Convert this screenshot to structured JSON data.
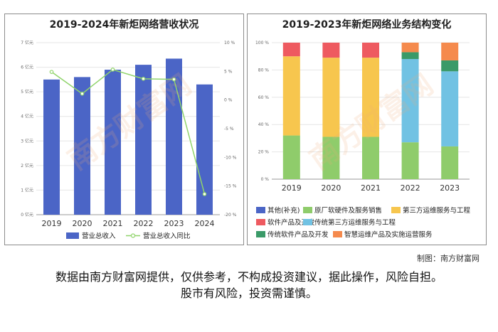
{
  "left_chart_title": "2019-2024年新炬网络营收状况",
  "right_chart_title": "2019-2023年新炬网络业务结构变化",
  "credit": "制图：南方财富网",
  "disclaimer_line1": "数据由南方财富网提供，仅供参考，不构成投资建议，据此操作，风险自担。",
  "disclaimer_line2": "股市有风险，投资需谨慎。",
  "watermark": "南方财富网",
  "colors": {
    "revenue_bar": "#4b65c6",
    "growth_line": "#90d46b",
    "other": "#4b65c6",
    "hardware": "#8fcc6b",
    "third_party": "#f7c64e",
    "software_dev": "#ee5a60",
    "traditional_third": "#71c2e3",
    "traditional_software": "#3a9a68",
    "smart_ops": "#f58a4d"
  },
  "chart_data": [
    {
      "type": "bar",
      "title": "2019-2024年新炬网络营收状况",
      "categories": [
        "2019",
        "2020",
        "2021",
        "2022",
        "2023",
        "2024"
      ],
      "y_ticks_left": [
        "0 亿元",
        "1 亿元",
        "2 亿元",
        "3 亿元",
        "4 亿元",
        "5 亿元",
        "6 亿元",
        "7 亿元"
      ],
      "y_ticks_right": [
        "-20 %",
        "-15 %",
        "-10 %",
        "-5 %",
        "0 %",
        "5 %",
        "10 %"
      ],
      "ylim_left": [
        0,
        7
      ],
      "ylim_right": [
        -20,
        10
      ],
      "series": [
        {
          "name": "营业总收入",
          "type": "bar",
          "axis": "left",
          "values": [
            5.5,
            5.6,
            5.9,
            6.1,
            6.35,
            5.3
          ]
        },
        {
          "name": "营业总收入同比",
          "type": "line",
          "axis": "right",
          "values": [
            4.9,
            1.1,
            5.3,
            3.7,
            3.6,
            -16.4
          ]
        }
      ]
    },
    {
      "type": "bar",
      "stacked": true,
      "title": "2019-2023年新炬网络业务结构变化",
      "categories": [
        "2019",
        "2020",
        "2021",
        "2022",
        "2023"
      ],
      "y_ticks": [
        "0 %",
        "20 %",
        "40 %",
        "60 %",
        "80 %",
        "100 %"
      ],
      "ylim": [
        0,
        100
      ],
      "series": [
        {
          "name": "其他(补充)",
          "values": [
            0,
            0,
            0,
            0,
            0
          ]
        },
        {
          "name": "原厂软硬件及服务销售",
          "values": [
            32,
            31,
            31,
            27,
            24
          ]
        },
        {
          "name": "第三方运维服务与工程",
          "values": [
            58,
            58,
            58,
            0,
            0
          ]
        },
        {
          "name": "软件产品及开发",
          "values": [
            10,
            11,
            11,
            0,
            0
          ]
        },
        {
          "name": "传统第三方运维服务与工程",
          "values": [
            0,
            0,
            0,
            61,
            55
          ]
        },
        {
          "name": "传统软件产品及开发",
          "values": [
            0,
            0,
            0,
            5,
            8
          ]
        },
        {
          "name": "智慧运维产品及实施运营服务",
          "values": [
            0,
            0,
            0,
            7,
            13
          ]
        }
      ]
    }
  ]
}
